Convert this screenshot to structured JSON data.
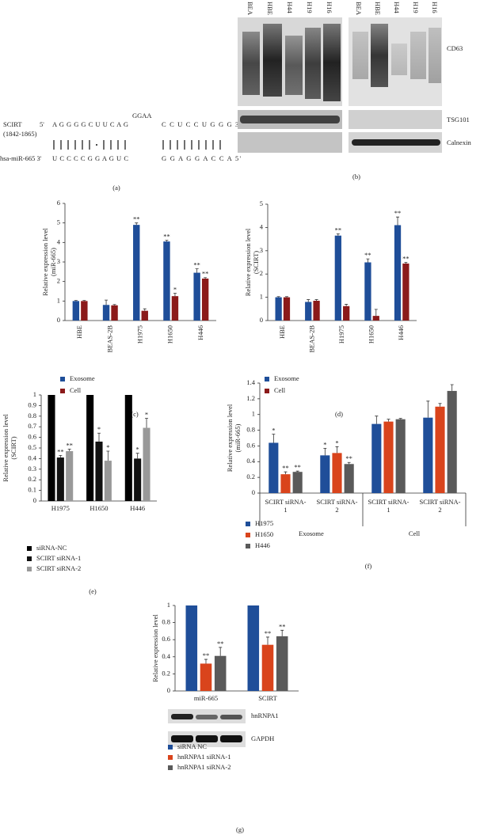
{
  "panel_a": {
    "rna_label": "SCIRT",
    "rna_range": "(1842-1865)",
    "rna_5prime": "5'",
    "rna_seq_1": "A G G G G C U U C A G",
    "loop": "GGAA",
    "rna_seq_2": "C C U C C U G G G 3'",
    "mirna_label": "hsa-miR-665 3'",
    "mirna_seq_1": "U C C C C G G A G U C",
    "mirna_seq_2": "G G A G G A C C A 5'",
    "caption": "(a)"
  },
  "panel_b": {
    "lanes_left": [
      "BEA",
      "HBE",
      "H44",
      "H19",
      "H16"
    ],
    "lanes_right": [
      "BEA",
      "HBE",
      "H44",
      "H19",
      "H16"
    ],
    "rows": [
      "CD63",
      "TSG101",
      "Calnexin"
    ],
    "caption": "(b)"
  },
  "chart_data": [
    {
      "type": "bar",
      "caption": "(c)",
      "y_label": [
        "Relative expression level",
        "(miR-665)"
      ],
      "categories": [
        "HBE",
        "BEAS-2B",
        "H1975",
        "H1650",
        "H446"
      ],
      "series": [
        {
          "name": "Exosome",
          "color": "#1f4e99",
          "values": [
            1,
            0.8,
            4.9,
            4.05,
            2.45
          ],
          "errors": [
            0.03,
            0.25,
            0.1,
            0.06,
            0.2
          ],
          "annotations": [
            null,
            null,
            "**",
            "**",
            "**"
          ]
        },
        {
          "name": "Cell",
          "color": "#8b1a1a",
          "values": [
            1,
            0.78,
            0.5,
            1.25,
            2.15
          ],
          "errors": [
            0.03,
            0.04,
            0.1,
            0.15,
            0.05
          ],
          "annotations": [
            null,
            null,
            null,
            "*",
            "**"
          ]
        }
      ],
      "ylim": [
        0,
        6
      ],
      "yticks": [
        0,
        1,
        2,
        3,
        4,
        5,
        6
      ]
    },
    {
      "type": "bar",
      "caption": "(d)",
      "y_label": [
        "Relative expression level",
        "(SCIRT)"
      ],
      "categories": [
        "HBE",
        "BEAS-2B",
        "H1975",
        "H1650",
        "H446"
      ],
      "series": [
        {
          "name": "Exosome",
          "color": "#1f4e99",
          "values": [
            1,
            0.8,
            3.65,
            2.5,
            4.1
          ],
          "errors": [
            0.03,
            0.1,
            0.08,
            0.15,
            0.35
          ],
          "annotations": [
            null,
            null,
            "**",
            "**",
            "**"
          ]
        },
        {
          "name": "Cell",
          "color": "#8b1a1a",
          "values": [
            1,
            0.85,
            0.62,
            0.2,
            2.45
          ],
          "errors": [
            0.03,
            0.05,
            0.08,
            0.28,
            0.05
          ],
          "annotations": [
            null,
            null,
            null,
            null,
            "**"
          ]
        }
      ],
      "ylim": [
        0,
        5
      ],
      "yticks": [
        0,
        1,
        2,
        3,
        4,
        5
      ]
    },
    {
      "type": "bar",
      "caption": "(e)",
      "y_label": [
        "Relative expression level",
        "(SCIRT)"
      ],
      "categories": [
        "H1975",
        "H1650",
        "H446"
      ],
      "series": [
        {
          "name": "siRNA-NC",
          "color": "#000000",
          "values": [
            1,
            1,
            1
          ],
          "annotations": [
            null,
            null,
            null
          ]
        },
        {
          "name": "SCIRT siRNA-1",
          "color": "#111111",
          "values": [
            0.41,
            0.56,
            0.4
          ],
          "errors": [
            0.02,
            0.08,
            0.05
          ],
          "annotations": [
            "**",
            "*",
            "*"
          ]
        },
        {
          "name": "SCIRT siRNA-2",
          "color": "#999999",
          "values": [
            0.47,
            0.38,
            0.69
          ],
          "errors": [
            0.02,
            0.09,
            0.09
          ],
          "annotations": [
            "**",
            "*",
            "*"
          ]
        }
      ],
      "ylim": [
        0,
        1
      ],
      "yticks": [
        0,
        0.1,
        0.2,
        0.3,
        0.4,
        0.5,
        0.6,
        0.7,
        0.8,
        0.9,
        1
      ]
    },
    {
      "type": "bar",
      "caption": "(f)",
      "y_label": [
        "Relative expression level",
        "(miR-665)"
      ],
      "categories": [
        "SCIRT siRNA-1",
        "SCIRT siRNA-2",
        "SCIRT siRNA-1",
        "SCIRT siRNA-2"
      ],
      "group_labels": [
        "Exosome",
        "Cell"
      ],
      "series": [
        {
          "name": "H1975",
          "color": "#1f4e99",
          "values": [
            0.64,
            0.48,
            0.88,
            0.96
          ],
          "errors": [
            0.11,
            0.09,
            0.1,
            0.21
          ],
          "annotations": [
            "*",
            "*",
            null,
            null
          ]
        },
        {
          "name": "H1650",
          "color": "#d9441c",
          "values": [
            0.24,
            0.51,
            0.91,
            1.1
          ],
          "errors": [
            0.03,
            0.08,
            0.03,
            0.04
          ],
          "annotations": [
            "**",
            "*",
            null,
            null
          ]
        },
        {
          "name": "H446",
          "color": "#5a5a5a",
          "values": [
            0.27,
            0.37,
            0.94,
            1.3
          ],
          "errors": [
            0.01,
            0.02,
            0.01,
            0.08
          ],
          "annotations": [
            "**",
            "**",
            null,
            null
          ]
        }
      ],
      "ylim": [
        0,
        1.4
      ],
      "yticks": [
        0,
        0.2,
        0.4,
        0.6,
        0.8,
        1,
        1.2,
        1.4
      ]
    },
    {
      "type": "bar",
      "caption": "(g)",
      "y_label": [
        "Relative expression level"
      ],
      "categories": [
        "miR-665",
        "SCIRT"
      ],
      "blot_labels": [
        "hnRNPA1",
        "GAPDH"
      ],
      "series": [
        {
          "name": "siRNA NC",
          "color": "#1f4e99",
          "values": [
            1,
            1
          ],
          "annotations": [
            null,
            null
          ]
        },
        {
          "name": "hnRNPA1 siRNA-1",
          "color": "#d9441c",
          "values": [
            0.32,
            0.54
          ],
          "errors": [
            0.05,
            0.09
          ],
          "annotations": [
            "**",
            "**"
          ]
        },
        {
          "name": "hnRNPA1 siRNA-2",
          "color": "#5a5a5a",
          "values": [
            0.41,
            0.64
          ],
          "errors": [
            0.1,
            0.07
          ],
          "annotations": [
            "**",
            "**"
          ]
        }
      ],
      "ylim": [
        0,
        1
      ],
      "yticks": [
        0,
        0.2,
        0.4,
        0.6,
        0.8,
        1
      ]
    }
  ]
}
